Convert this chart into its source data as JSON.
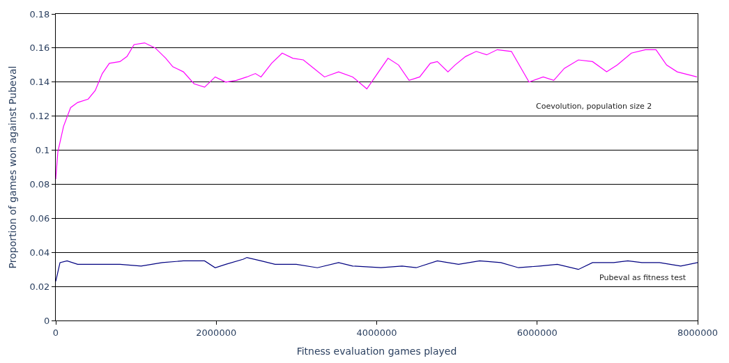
{
  "chart_data": {
    "type": "line",
    "xlabel": "Fitness evaluation games played",
    "ylabel": "Proportion of games won against Pubeval",
    "xlim": [
      0,
      8000000
    ],
    "xticks": [
      0,
      2000000,
      4000000,
      6000000,
      8000000
    ],
    "ylim": [
      0,
      0.18
    ],
    "yticks": [
      0,
      0.02,
      0.04,
      0.06,
      0.08,
      0.1,
      0.12,
      0.14,
      0.16,
      0.18
    ],
    "grid": "y",
    "legend": false,
    "marker": "none",
    "line_style": "solid",
    "series": [
      {
        "name": "Coevolution, population size 2",
        "color": "#ff00ff",
        "x": [
          0,
          26000,
          97000,
          185000,
          273000,
          404000,
          492000,
          580000,
          668000,
          800000,
          888000,
          976000,
          1108000,
          1240000,
          1371000,
          1459000,
          1591000,
          1723000,
          1855000,
          1987000,
          2119000,
          2251000,
          2382000,
          2488000,
          2558000,
          2690000,
          2822000,
          2954000,
          3086000,
          3218000,
          3349000,
          3525000,
          3701000,
          3877000,
          4009000,
          4141000,
          4273000,
          4404000,
          4536000,
          4668000,
          4756000,
          4888000,
          4976000,
          5108000,
          5240000,
          5371000,
          5503000,
          5679000,
          5899000,
          6075000,
          6207000,
          6338000,
          6514000,
          6690000,
          6866000,
          6998000,
          7174000,
          7349000,
          7481000,
          7613000,
          7745000,
          7991000
        ],
        "values": [
          0.083,
          0.099,
          0.114,
          0.125,
          0.128,
          0.13,
          0.135,
          0.145,
          0.151,
          0.152,
          0.155,
          0.162,
          0.163,
          0.16,
          0.154,
          0.149,
          0.146,
          0.139,
          0.137,
          0.143,
          0.14,
          0.141,
          0.143,
          0.145,
          0.143,
          0.151,
          0.157,
          0.154,
          0.153,
          0.148,
          0.143,
          0.146,
          0.143,
          0.136,
          0.145,
          0.154,
          0.15,
          0.141,
          0.143,
          0.151,
          0.152,
          0.146,
          0.15,
          0.155,
          0.158,
          0.156,
          0.159,
          0.158,
          0.14,
          0.143,
          0.141,
          0.148,
          0.153,
          0.152,
          0.146,
          0.15,
          0.157,
          0.159,
          0.159,
          0.15,
          0.146,
          0.143
        ]
      },
      {
        "name": "Pubeval as fitness test",
        "color": "#000080",
        "x": [
          0,
          53000,
          141000,
          273000,
          536000,
          800000,
          1064000,
          1327000,
          1591000,
          1855000,
          1987000,
          2119000,
          2338000,
          2382000,
          2558000,
          2734000,
          2998000,
          3261000,
          3525000,
          3701000,
          4053000,
          4316000,
          4492000,
          4756000,
          5020000,
          5283000,
          5547000,
          5767000,
          6031000,
          6251000,
          6514000,
          6690000,
          6954000,
          7130000,
          7305000,
          7525000,
          7789000,
          8000000
        ],
        "values": [
          0.023,
          0.034,
          0.035,
          0.033,
          0.033,
          0.033,
          0.032,
          0.034,
          0.035,
          0.035,
          0.031,
          0.033,
          0.036,
          0.037,
          0.035,
          0.033,
          0.033,
          0.031,
          0.034,
          0.032,
          0.031,
          0.032,
          0.031,
          0.035,
          0.033,
          0.035,
          0.034,
          0.031,
          0.032,
          0.033,
          0.03,
          0.034,
          0.034,
          0.035,
          0.034,
          0.034,
          0.032,
          0.034
        ]
      }
    ]
  }
}
